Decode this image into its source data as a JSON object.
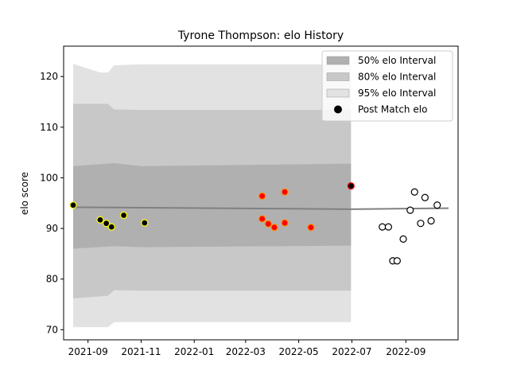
{
  "chart_data": {
    "type": "scatter",
    "title": "Tyrone Thompson: elo History",
    "xlabel": "",
    "ylabel": "elo score",
    "x_ticks": [
      "2021-09",
      "2021-11",
      "2022-01",
      "2022-03",
      "2022-05",
      "2022-07",
      "2022-09"
    ],
    "y_ticks": [
      70,
      80,
      90,
      100,
      110,
      120
    ],
    "xlim": [
      "2021-08-04",
      "2022-10-31"
    ],
    "ylim": [
      68,
      126
    ],
    "legend": {
      "position": "top-right",
      "entries": [
        {
          "label": "50% elo Interval",
          "kind": "band",
          "color": "#b0b0b0"
        },
        {
          "label": "80% elo Interval",
          "kind": "band",
          "color": "#c8c8c8"
        },
        {
          "label": "95% elo Interval",
          "kind": "band",
          "color": "#e2e2e2"
        },
        {
          "label": "Post Match elo",
          "kind": "marker",
          "color": "#000000"
        }
      ]
    },
    "mean_line": {
      "color": "#808080",
      "x": [
        "2021-08-15",
        "2022-06-30",
        "2022-10-20"
      ],
      "y": [
        94.2,
        93.8,
        94.0
      ]
    },
    "bands": [
      {
        "name": "95% elo Interval",
        "color": "#e2e2e2",
        "x": [
          "2021-08-15",
          "2021-09-15",
          "2021-09-24",
          "2021-10-01",
          "2021-11-01",
          "2022-06-30"
        ],
        "upper": [
          122.5,
          120.8,
          120.8,
          122.2,
          122.4,
          122.4
        ],
        "lower": [
          70.5,
          70.5,
          70.5,
          71.5,
          71.5,
          71.5
        ]
      },
      {
        "name": "80% elo Interval",
        "color": "#c8c8c8",
        "x": [
          "2021-08-15",
          "2021-09-24",
          "2021-10-01",
          "2021-11-01",
          "2022-06-30"
        ],
        "upper": [
          114.6,
          114.6,
          113.5,
          113.4,
          113.4
        ],
        "lower": [
          76.2,
          76.7,
          77.8,
          77.7,
          77.7
        ]
      },
      {
        "name": "50% elo Interval",
        "color": "#b0b0b0",
        "x": [
          "2021-08-15",
          "2021-10-01",
          "2021-11-01",
          "2022-06-30"
        ],
        "upper": [
          102.3,
          102.9,
          102.3,
          102.8
        ],
        "lower": [
          86.0,
          86.5,
          86.3,
          86.6
        ]
      }
    ],
    "series": [
      {
        "name": "Post Match elo",
        "marker_fill": "#000000",
        "marker_edge": "#ffff00",
        "x": [
          "2021-08-15",
          "2021-09-15",
          "2021-09-22",
          "2021-09-28",
          "2021-10-12",
          "2021-11-05"
        ],
        "y": [
          94.6,
          91.7,
          91.0,
          90.3,
          92.6,
          91.1
        ]
      },
      {
        "name": "Post Match elo",
        "marker_fill": "#ff0000",
        "marker_edge": "#ff8c00",
        "x": [
          "2022-03-20",
          "2022-03-20",
          "2022-03-27",
          "2022-04-03",
          "2022-04-15",
          "2022-04-15",
          "2022-05-15"
        ],
        "y": [
          96.4,
          91.9,
          90.9,
          90.2,
          97.2,
          91.1,
          90.2
        ]
      },
      {
        "name": "Post Match elo",
        "marker_fill": "#000000",
        "marker_edge": "#ff0000",
        "x": [
          "2022-06-30"
        ],
        "y": [
          98.4
        ]
      },
      {
        "name": "Post Match elo",
        "marker_fill": "#ffffff",
        "marker_edge": "#000000",
        "x": [
          "2022-08-05",
          "2022-08-12",
          "2022-08-17",
          "2022-08-22",
          "2022-08-29",
          "2022-09-06",
          "2022-09-11",
          "2022-09-18",
          "2022-09-23",
          "2022-09-30",
          "2022-10-07"
        ],
        "y": [
          90.3,
          90.3,
          83.6,
          83.6,
          87.9,
          93.6,
          97.2,
          91.0,
          96.1,
          91.5,
          94.6
        ]
      }
    ]
  }
}
